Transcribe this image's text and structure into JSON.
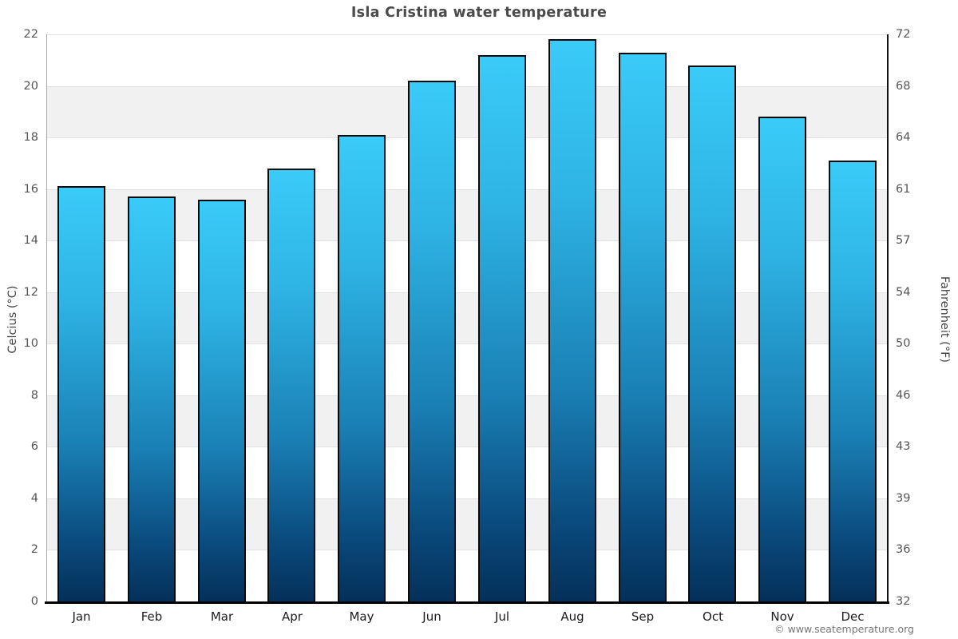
{
  "title": "Isla Cristina water temperature",
  "footer": "© www.seatemperature.org",
  "axes": {
    "left_label": "Celcius (°C)",
    "right_label": "Fahrenheit (°F)",
    "celsius_ticks": [
      22,
      20,
      18,
      16,
      14,
      12,
      10,
      8,
      6,
      4,
      2,
      0
    ],
    "fahrenheit_ticks": [
      72,
      68,
      64,
      61,
      57,
      54,
      50,
      46,
      43,
      39,
      36,
      32
    ]
  },
  "chart_data": {
    "type": "bar",
    "title": "Isla Cristina water temperature",
    "categories": [
      "Jan",
      "Feb",
      "Mar",
      "Apr",
      "May",
      "Jun",
      "Jul",
      "Aug",
      "Sep",
      "Oct",
      "Nov",
      "Dec"
    ],
    "values": [
      16.1,
      15.7,
      15.6,
      16.8,
      18.1,
      20.2,
      21.2,
      21.8,
      21.3,
      20.8,
      18.8,
      17.1
    ],
    "xlabel": "",
    "ylabel": "Celcius (°C)",
    "y2label": "Fahrenheit (°F)",
    "ylim": [
      0,
      22
    ],
    "y_step": 2,
    "grid": "horizontal-bands",
    "legend_position": "none"
  },
  "colors": {
    "bar_gradient_top": "#3acbf9",
    "bar_gradient_bottom": "#043059",
    "bar_border": "#0a0a0a",
    "band_gray": "#f1f1f1",
    "gridline": "#e2e2e2",
    "title_text": "#4a4a4a",
    "tick_text": "#555555",
    "month_text": "#1c1c1c",
    "footer_text": "#777777"
  }
}
